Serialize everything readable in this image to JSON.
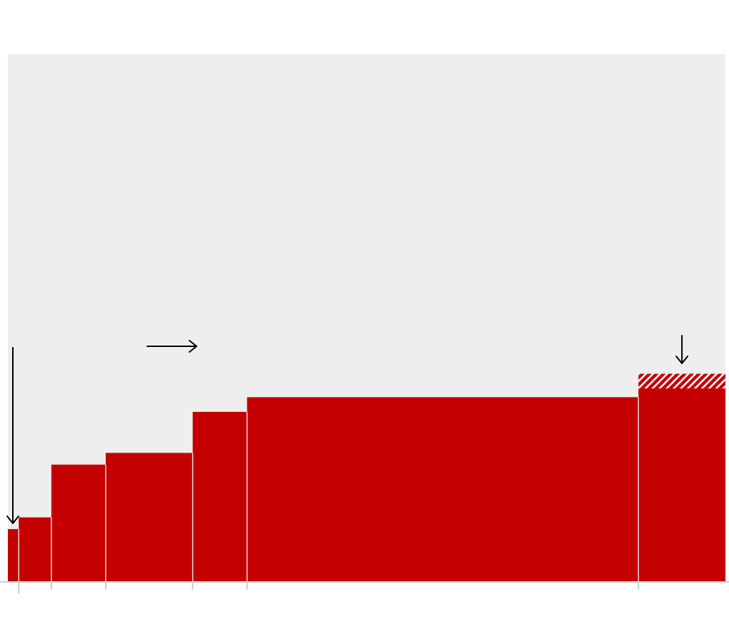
{
  "colors": {
    "bar": "#c50000",
    "plot_background": "#eeeeee",
    "divider": "#dddddd",
    "axis": "#cccccc",
    "arrow": "#000000",
    "hatch_stripe": "#ffffff"
  },
  "chart_data": {
    "type": "bar",
    "variable_width": true,
    "x_breaks": [
      0,
      1,
      4,
      9,
      17,
      22,
      58,
      66
    ],
    "values": [
      18,
      22,
      40,
      44,
      58,
      63,
      66
    ],
    "projected_extension": {
      "segment_index": 6,
      "value": 71
    },
    "ylim": [
      0,
      180
    ],
    "grid": false,
    "legend": "none",
    "annotations": [
      {
        "type": "arrow",
        "direction": "down",
        "target_segment": 0
      },
      {
        "type": "arrow",
        "direction": "right"
      },
      {
        "type": "arrow",
        "direction": "down",
        "target_segment": 6
      }
    ]
  }
}
